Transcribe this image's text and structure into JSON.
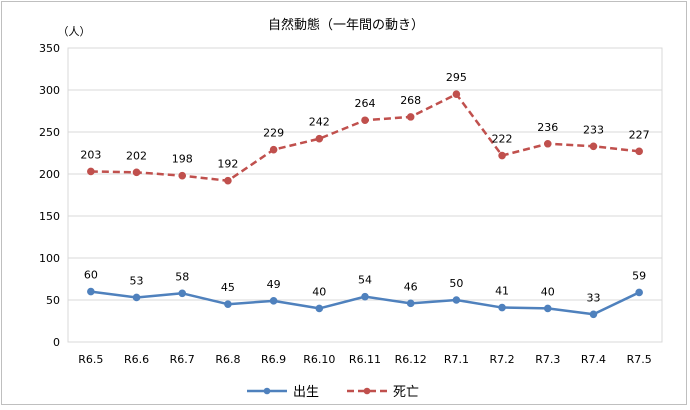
{
  "chart_data": {
    "type": "line",
    "title": "自然動態（一年間の動き）",
    "ylabel": "（人）",
    "xlabel": "",
    "ylim": [
      0,
      350
    ],
    "yticks": [
      0,
      50,
      100,
      150,
      200,
      250,
      300,
      350
    ],
    "grid": true,
    "legend_position": "bottom",
    "categories": [
      "R6.5",
      "R6.6",
      "R6.7",
      "R6.8",
      "R6.9",
      "R6.10",
      "R6.11",
      "R6.12",
      "R7.1",
      "R7.2",
      "R7.3",
      "R7.4",
      "R7.5"
    ],
    "series": [
      {
        "name": "出生",
        "color": "#4f81bd",
        "line_style": "solid",
        "values": [
          60,
          53,
          58,
          45,
          49,
          40,
          54,
          46,
          50,
          41,
          40,
          33,
          59
        ]
      },
      {
        "name": "死亡",
        "color": "#c0504d",
        "line_style": "dashed",
        "values": [
          203,
          202,
          198,
          192,
          229,
          242,
          264,
          268,
          295,
          222,
          236,
          233,
          227
        ]
      }
    ]
  }
}
